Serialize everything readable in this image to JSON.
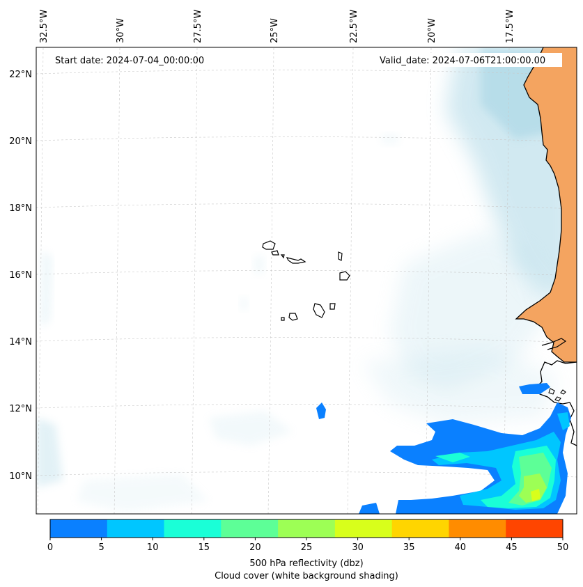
{
  "annotations": {
    "start_date": "Start date: 2024-07-04_00:00:00",
    "valid_date": "Valid_date: 2024-07-06T21:00:00.00"
  },
  "map": {
    "lon_ticks": [
      "32.5°W",
      "30°W",
      "27.5°W",
      "25°W",
      "22.5°W",
      "20°W",
      "17.5°W"
    ],
    "lat_ticks": [
      "22°N",
      "20°N",
      "18°N",
      "16°N",
      "14°N",
      "12°N",
      "10°N"
    ],
    "colors": {
      "land": "#f4a460",
      "cloud": "#add8e6",
      "coastline": "#000000"
    }
  },
  "colorbar": {
    "ticks": [
      "0",
      "5",
      "10",
      "15",
      "20",
      "25",
      "30",
      "35",
      "40",
      "45",
      "50"
    ],
    "colors": [
      "#0a80ff",
      "#00c6ff",
      "#1affd7",
      "#5dff97",
      "#9dff55",
      "#d8ff1b",
      "#ffd500",
      "#ff8c00",
      "#ff4500"
    ],
    "label_line1": "500 hPa reflectivity (dbz)",
    "label_line2": "Cloud cover (white background shading)"
  }
}
